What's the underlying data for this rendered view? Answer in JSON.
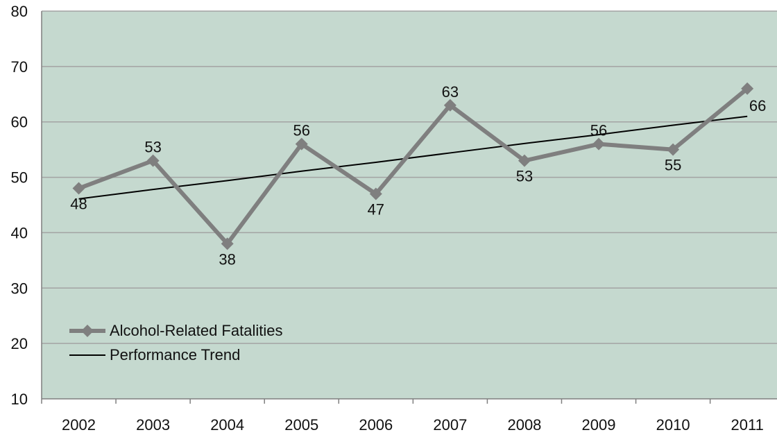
{
  "chart_data": {
    "type": "line",
    "categories": [
      "2002",
      "2003",
      "2004",
      "2005",
      "2006",
      "2007",
      "2008",
      "2009",
      "2010",
      "2011"
    ],
    "series": [
      {
        "name": "Alcohol-Related Fatalities",
        "values": [
          48,
          53,
          38,
          56,
          47,
          63,
          53,
          56,
          55,
          66
        ],
        "color": "#7f7f7f",
        "marker": "diamond",
        "data_labels": true
      },
      {
        "name": "Performance Trend",
        "values": [
          46.1,
          47.8,
          49.4,
          51.1,
          52.7,
          54.4,
          56.1,
          57.7,
          59.4,
          61.0
        ],
        "color": "#000000",
        "marker": "none",
        "data_labels": false
      }
    ],
    "ylim": [
      10,
      80
    ],
    "yticks": [
      10,
      20,
      30,
      40,
      50,
      60,
      70,
      80
    ],
    "grid": true,
    "legend_position": "lower-left",
    "plot_background": "#c5d9cf",
    "gridline_color": "#a3a3a3"
  }
}
